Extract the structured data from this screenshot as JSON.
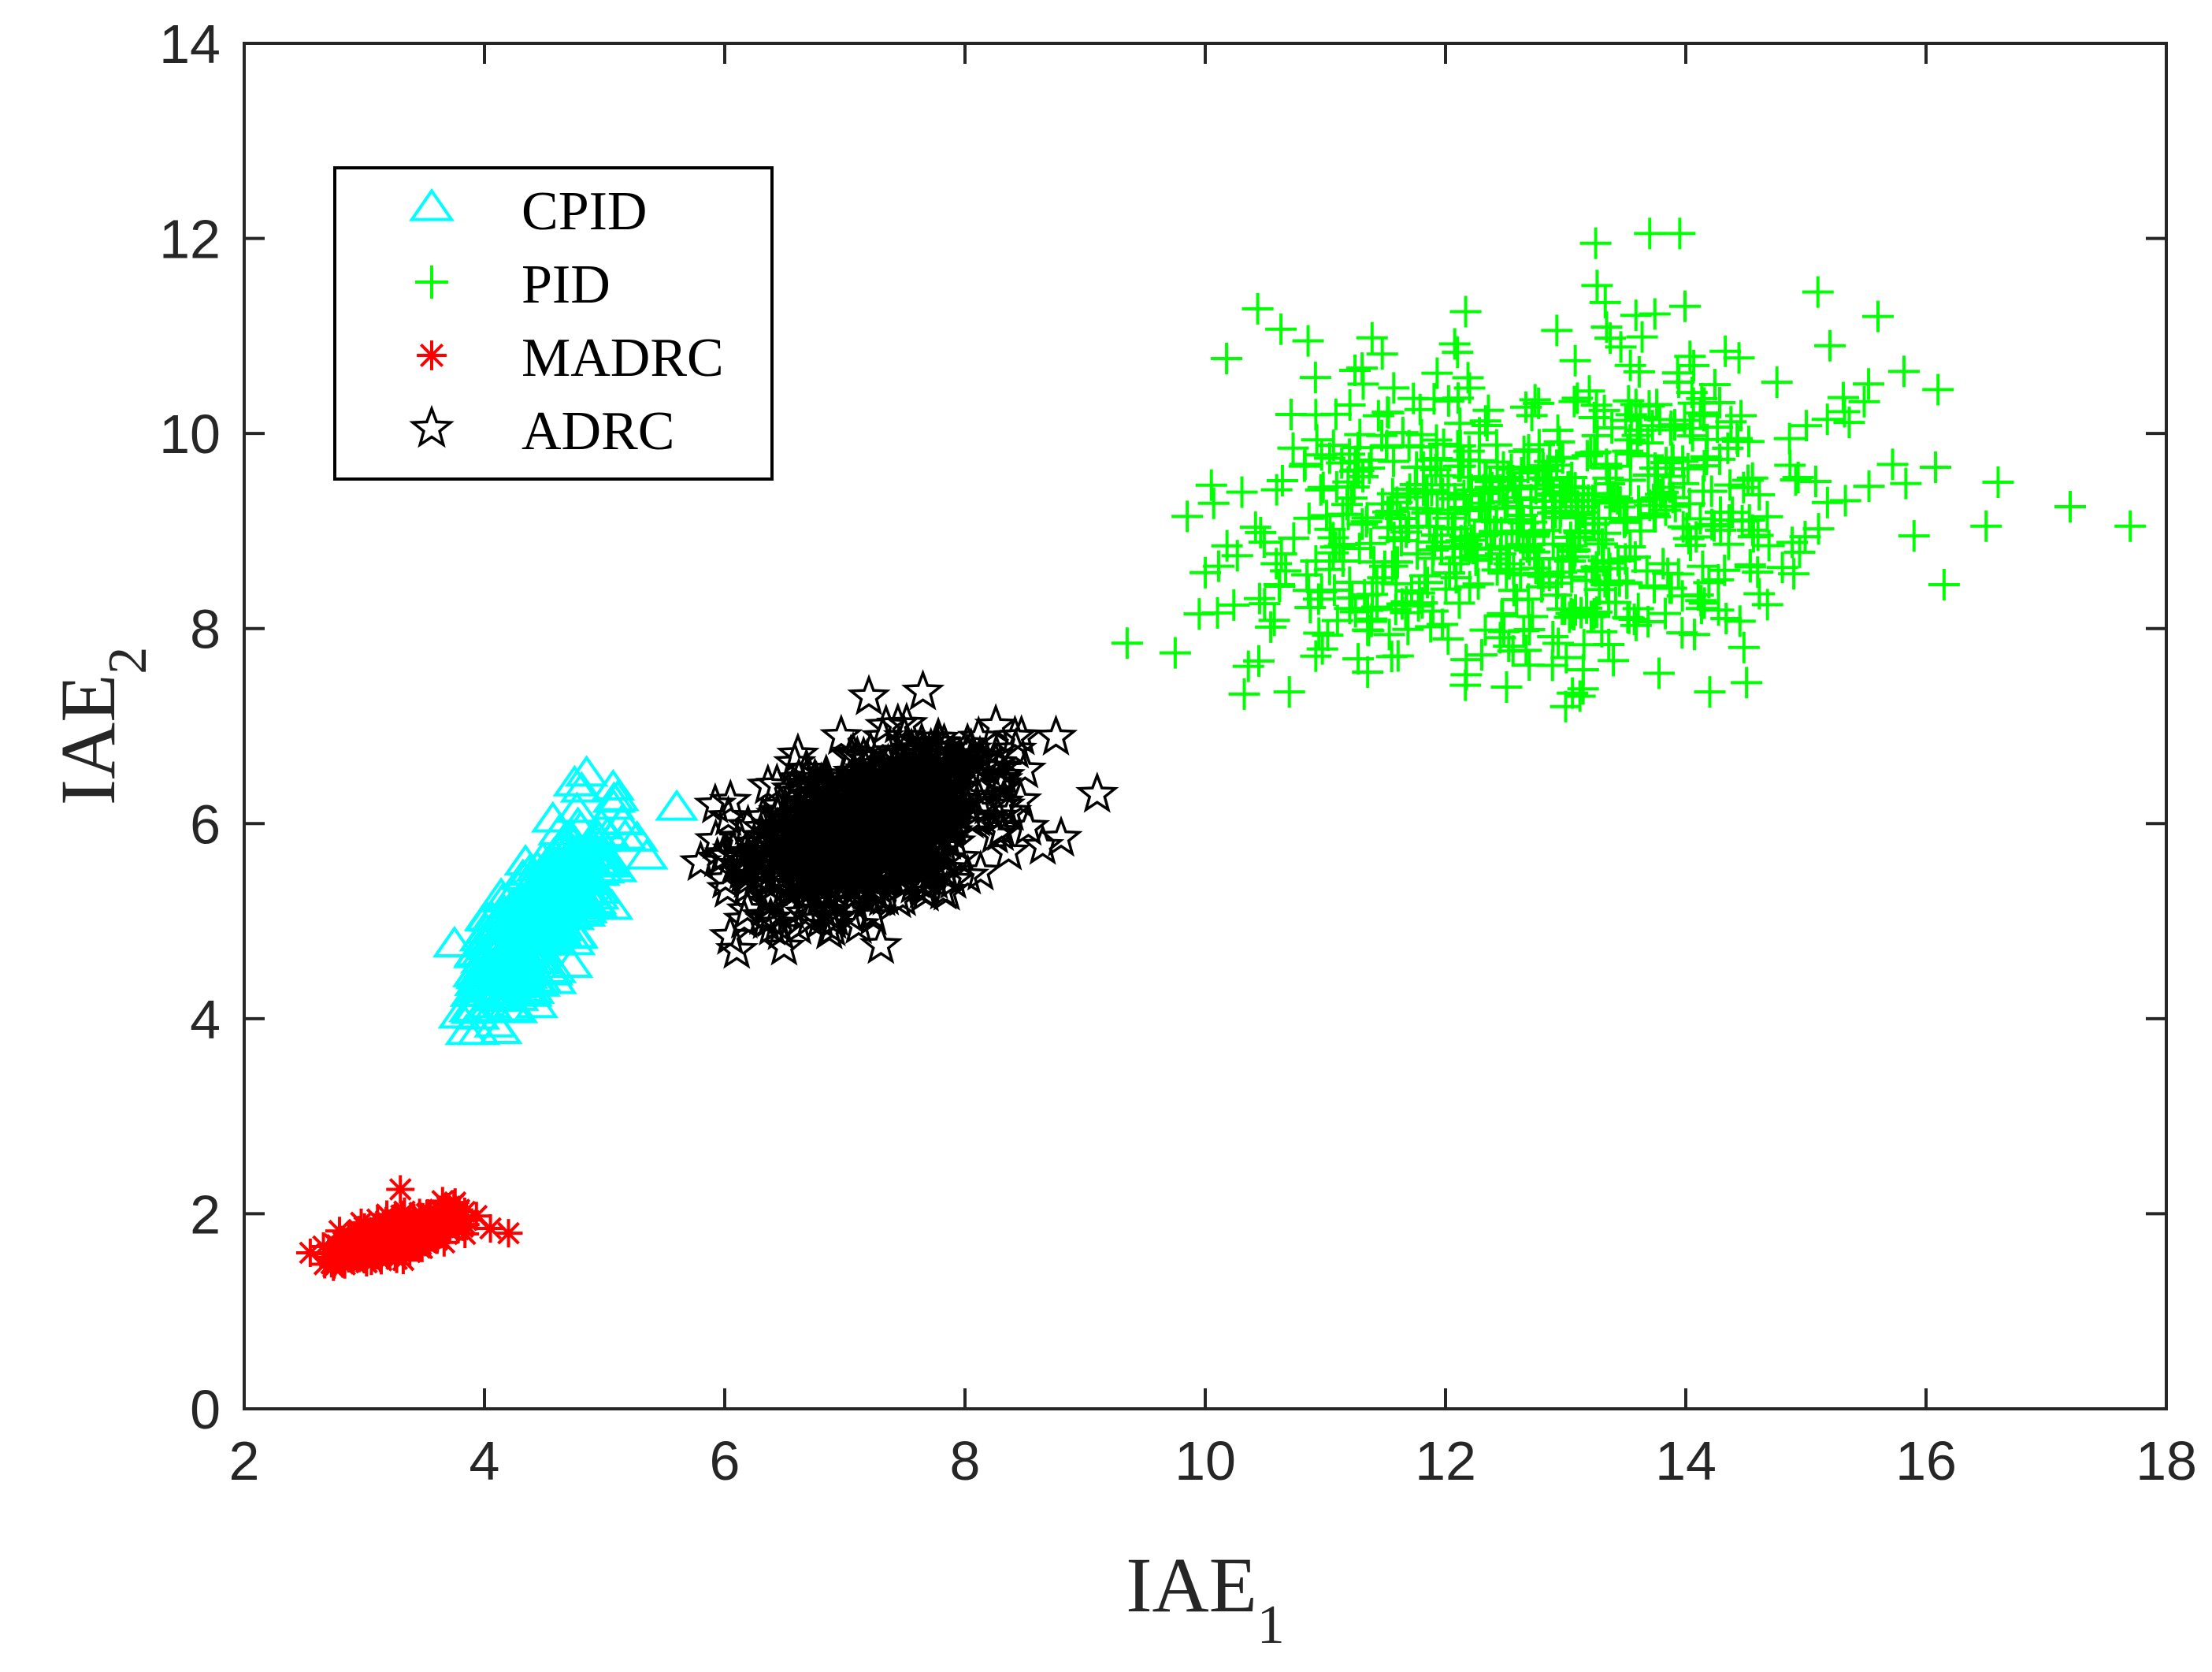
{
  "chart_data": {
    "type": "scatter",
    "title": "",
    "xlabel": {
      "main": "IAE",
      "subscript": "1"
    },
    "ylabel": {
      "main": "IAE",
      "subscript": "2"
    },
    "xlim": [
      2,
      18
    ],
    "ylim": [
      0,
      14
    ],
    "xticks": [
      2,
      4,
      6,
      8,
      10,
      12,
      14,
      16,
      18
    ],
    "yticks": [
      0,
      2,
      4,
      6,
      8,
      10,
      12,
      14
    ],
    "grid": false,
    "legend_position": "top-left",
    "series": [
      {
        "name": "CPID",
        "marker": "triangle",
        "color": "#00ffff",
        "cluster": {
          "count": 400,
          "mean": [
            4.45,
            5.0
          ],
          "sd": [
            0.28,
            0.45
          ],
          "corr": 0.75,
          "xlim": [
            3.75,
            5.35
          ],
          "ylim": [
            3.8,
            6.55
          ]
        },
        "points": [
          [
            5.6,
            6.15
          ],
          [
            5.35,
            5.65
          ],
          [
            4.85,
            6.5
          ],
          [
            4.75,
            6.4
          ],
          [
            3.85,
            3.85
          ],
          [
            3.95,
            3.85
          ],
          [
            3.75,
            4.75
          ],
          [
            5.15,
            6.0
          ]
        ]
      },
      {
        "name": "PID",
        "marker": "plus",
        "color": "#00ff00",
        "cluster": {
          "count": 650,
          "mean": [
            12.6,
            9.1
          ],
          "sd": [
            1.3,
            0.85
          ],
          "corr": 0.15,
          "xlim": [
            10.0,
            16.2
          ],
          "ylim": [
            7.3,
            12.1
          ]
        },
        "points": [
          [
            9.35,
            7.85
          ],
          [
            9.75,
            7.75
          ],
          [
            9.95,
            8.15
          ],
          [
            9.85,
            9.15
          ],
          [
            17.7,
            9.05
          ],
          [
            17.2,
            9.25
          ],
          [
            16.6,
            9.5
          ],
          [
            16.5,
            9.05
          ],
          [
            16.15,
            8.45
          ],
          [
            16.1,
            10.45
          ],
          [
            15.9,
            8.95
          ],
          [
            15.6,
            11.2
          ],
          [
            15.2,
            10.9
          ],
          [
            15.1,
            11.45
          ],
          [
            13.7,
            12.05
          ],
          [
            13.95,
            12.05
          ],
          [
            13.25,
            11.95
          ],
          [
            14.2,
            7.35
          ],
          [
            13.0,
            7.2
          ],
          [
            10.7,
            7.35
          ]
        ]
      },
      {
        "name": "MADRC",
        "marker": "asterisk",
        "color": "#ff0000",
        "cluster": {
          "count": 500,
          "mean": [
            3.25,
            1.75
          ],
          "sd": [
            0.25,
            0.12
          ],
          "corr": 0.7,
          "xlim": [
            2.6,
            3.95
          ],
          "ylim": [
            1.45,
            2.2
          ]
        },
        "points": [
          [
            4.2,
            1.8
          ],
          [
            4.05,
            1.85
          ],
          [
            2.55,
            1.6
          ],
          [
            3.3,
            2.25
          ]
        ]
      },
      {
        "name": "ADRC",
        "marker": "pentagram",
        "color": "#000000",
        "cluster": {
          "count": 700,
          "mean": [
            7.2,
            5.95
          ],
          "sd": [
            0.55,
            0.42
          ],
          "corr": 0.4,
          "xlim": [
            5.9,
            8.8
          ],
          "ylim": [
            4.7,
            7.3
          ]
        },
        "points": [
          [
            9.1,
            6.3
          ],
          [
            8.8,
            5.85
          ],
          [
            6.1,
            4.7
          ],
          [
            7.3,
            4.75
          ],
          [
            7.65,
            7.35
          ],
          [
            7.2,
            7.3
          ],
          [
            5.8,
            5.6
          ],
          [
            8.5,
            6.55
          ]
        ]
      }
    ]
  }
}
